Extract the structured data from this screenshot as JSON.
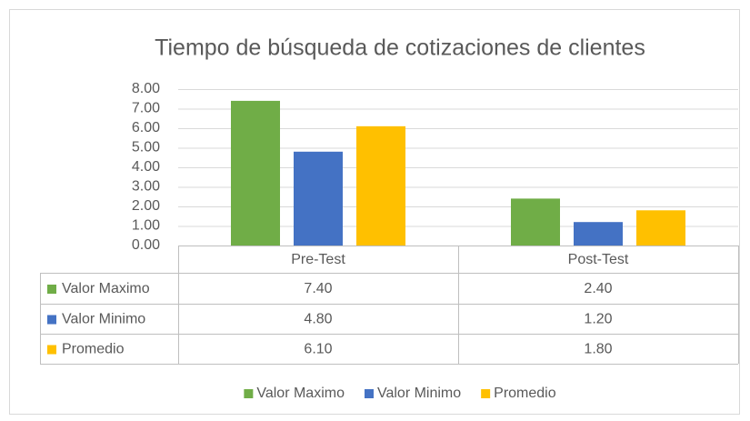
{
  "chart_data": {
    "type": "bar",
    "title": "Tiempo de búsqueda de cotizaciones de clientes",
    "categories": [
      "Pre-Test",
      "Post-Test"
    ],
    "series": [
      {
        "name": "Valor Maximo",
        "color": "#70ad47",
        "values": [
          7.4,
          2.4
        ],
        "value_labels": [
          "7.40",
          "2.40"
        ]
      },
      {
        "name": "Valor Minimo",
        "color": "#4472c4",
        "values": [
          4.8,
          1.2
        ],
        "value_labels": [
          "4.80",
          "1.20"
        ]
      },
      {
        "name": "Promedio",
        "color": "#ffc000",
        "values": [
          6.1,
          1.8
        ],
        "value_labels": [
          "6.10",
          "1.80"
        ]
      }
    ],
    "ylim": [
      0,
      8
    ],
    "yticks": [
      {
        "value": 0,
        "label": "0.00"
      },
      {
        "value": 1,
        "label": "1.00"
      },
      {
        "value": 2,
        "label": "2.00"
      },
      {
        "value": 3,
        "label": "3.00"
      },
      {
        "value": 4,
        "label": "4.00"
      },
      {
        "value": 5,
        "label": "5.00"
      },
      {
        "value": 6,
        "label": "6.00"
      },
      {
        "value": 7,
        "label": "7.00"
      },
      {
        "value": 8,
        "label": "8.00"
      }
    ],
    "grid": true,
    "data_table": true,
    "legend": "bottom"
  }
}
